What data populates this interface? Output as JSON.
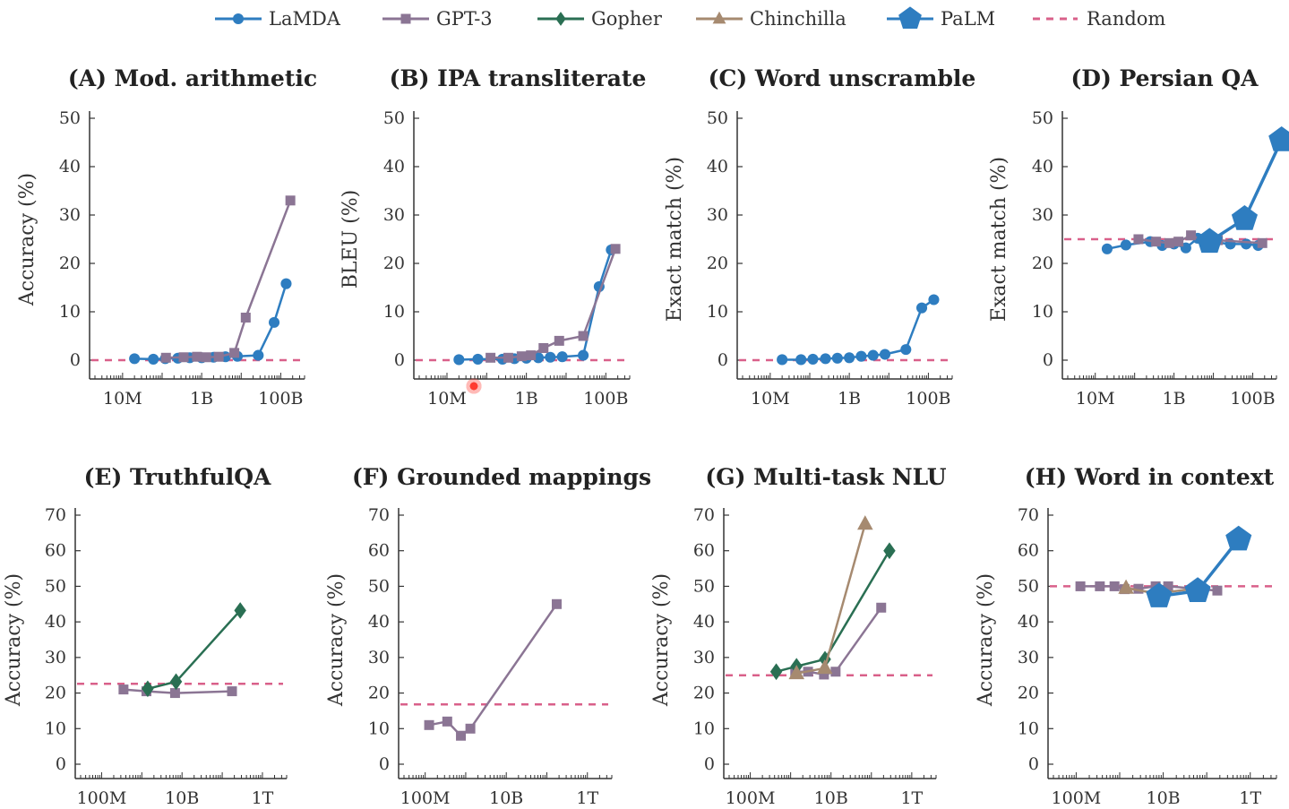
{
  "colors": {
    "LaMDA": "#2e7dc0",
    "GPT-3": "#8b7594",
    "Gopher": "#2a6f53",
    "Chinchilla": "#a68a70",
    "PaLM": "#2e7dc0",
    "Random": "#d9608a"
  },
  "legend": [
    {
      "name": "LaMDA",
      "marker": "circle",
      "dash": false
    },
    {
      "name": "GPT-3",
      "marker": "square",
      "dash": false
    },
    {
      "name": "Gopher",
      "marker": "diamond",
      "dash": false
    },
    {
      "name": "Chinchilla",
      "marker": "triangle",
      "dash": false
    },
    {
      "name": "PaLM",
      "marker": "pentagon",
      "dash": false
    },
    {
      "name": "Random",
      "marker": "none",
      "dash": true
    }
  ],
  "chart_data": [
    {
      "type": "line",
      "title": "(A) Mod. arithmetic",
      "xlabel": "",
      "ylabel": "Accuracy (%)",
      "xscale": "log",
      "xlim": [
        2000000.0,
        400000000000.0
      ],
      "ylim": [
        -4,
        52
      ],
      "yticks": [
        0,
        10,
        20,
        30,
        40,
        50
      ],
      "xticks": [
        {
          "value": 10000000.0,
          "label": "10M"
        },
        {
          "value": 1000000000.0,
          "label": "1B"
        },
        {
          "value": 100000000000.0,
          "label": "100B"
        }
      ],
      "random": 0,
      "series": [
        {
          "name": "LaMDA",
          "x": [
            20000000.0,
            60000000.0,
            120000000.0,
            250000000.0,
            500000000.0,
            1000000000.0,
            2000000000.0,
            4000000000.0,
            8000000000.0,
            27000000000.0,
            68000000000.0,
            137000000000.0
          ],
          "y": [
            0.3,
            0.2,
            0.3,
            0.4,
            0.5,
            0.5,
            0.6,
            0.7,
            0.8,
            1,
            7.8,
            15.8
          ]
        },
        {
          "name": "GPT-3",
          "x": [
            125000000.0,
            350000000.0,
            760000000.0,
            1300000000.0,
            2700000000.0,
            6700000000.0,
            13000000000.0,
            175000000000.0
          ],
          "y": [
            0.5,
            0.6,
            0.7,
            0.6,
            0.7,
            1.5,
            8.8,
            33
          ]
        }
      ]
    },
    {
      "type": "line",
      "title": "(B) IPA transliterate",
      "xlabel": "",
      "ylabel": "BLEU (%)",
      "xscale": "log",
      "xlim": [
        2000000.0,
        400000000000.0
      ],
      "ylim": [
        -4,
        52
      ],
      "yticks": [
        0,
        10,
        20,
        30,
        40,
        50
      ],
      "xticks": [
        {
          "value": 10000000.0,
          "label": "10M"
        },
        {
          "value": 1000000000.0,
          "label": "1B"
        },
        {
          "value": 100000000000.0,
          "label": "100B"
        }
      ],
      "random": 0,
      "series": [
        {
          "name": "LaMDA",
          "x": [
            20000000.0,
            60000000.0,
            250000000.0,
            500000000.0,
            1000000000.0,
            2000000000.0,
            4000000000.0,
            8000000000.0,
            27000000000.0,
            68000000000.0,
            137000000000.0
          ],
          "y": [
            0.1,
            0.2,
            0.2,
            0.3,
            0.4,
            0.5,
            0.6,
            0.7,
            1,
            15.2,
            22.8
          ]
        },
        {
          "name": "GPT-3",
          "x": [
            125000000.0,
            350000000.0,
            760000000.0,
            1300000000.0,
            2700000000.0,
            6700000000.0,
            27000000000.0,
            175000000000.0
          ],
          "y": [
            0.5,
            0.5,
            0.8,
            1,
            2.5,
            4,
            5,
            23
          ]
        }
      ]
    },
    {
      "type": "line",
      "title": "(C) Word unscramble",
      "xlabel": "",
      "ylabel": "Exact match (%)",
      "xscale": "log",
      "xlim": [
        2000000.0,
        400000000000.0
      ],
      "ylim": [
        -4,
        52
      ],
      "yticks": [
        0,
        10,
        20,
        30,
        40,
        50
      ],
      "xticks": [
        {
          "value": 10000000.0,
          "label": "10M"
        },
        {
          "value": 1000000000.0,
          "label": "1B"
        },
        {
          "value": 100000000000.0,
          "label": "100B"
        }
      ],
      "random": 0,
      "series": [
        {
          "name": "LaMDA",
          "x": [
            20000000.0,
            60000000.0,
            120000000.0,
            250000000.0,
            500000000.0,
            1000000000.0,
            2000000000.0,
            4000000000.0,
            8000000000.0,
            27000000000.0,
            68000000000.0,
            137000000000.0
          ],
          "y": [
            0.1,
            0.1,
            0.2,
            0.3,
            0.4,
            0.5,
            0.8,
            1,
            1.2,
            2.2,
            10.8,
            12.5
          ]
        }
      ]
    },
    {
      "type": "line",
      "title": "(D) Persian QA",
      "xlabel": "",
      "ylabel": "Exact match (%)",
      "xscale": "log",
      "xlim": [
        2000000.0,
        400000000000.0
      ],
      "ylim": [
        -4,
        52
      ],
      "yticks": [
        0,
        10,
        20,
        30,
        40,
        50
      ],
      "xticks": [
        {
          "value": 10000000.0,
          "label": "10M"
        },
        {
          "value": 1000000000.0,
          "label": "1B"
        },
        {
          "value": 100000000000.0,
          "label": "100B"
        }
      ],
      "random": 25,
      "series": [
        {
          "name": "LaMDA",
          "x": [
            20000000.0,
            60000000.0,
            250000000.0,
            500000000.0,
            1000000000.0,
            2000000000.0,
            4000000000.0,
            8000000000.0,
            27000000000.0,
            68000000000.0,
            137000000000.0
          ],
          "y": [
            23,
            23.8,
            24.5,
            23.7,
            24,
            23.2,
            25.2,
            24.5,
            24,
            24,
            23.7
          ]
        },
        {
          "name": "GPT-3",
          "x": [
            125000000.0,
            350000000.0,
            760000000.0,
            1300000000.0,
            2700000000.0,
            6700000000.0,
            13000000000.0,
            175000000000.0
          ],
          "y": [
            25,
            24.5,
            24.2,
            24.5,
            25.8,
            24.5,
            24.8,
            24.2
          ]
        },
        {
          "name": "PaLM",
          "x": [
            8000000000.0,
            62000000000.0,
            540000000000.0
          ],
          "y": [
            24.5,
            29.2,
            45.5
          ]
        }
      ]
    },
    {
      "type": "line",
      "title": "(E) TruthfulQA",
      "xlabel": "",
      "ylabel": "Accuracy (%)",
      "xscale": "log",
      "xlim": [
        30000000.0,
        4000000000000.0
      ],
      "ylim": [
        -4,
        72
      ],
      "yticks": [
        0,
        10,
        20,
        30,
        40,
        50,
        60,
        70
      ],
      "xticks": [
        {
          "value": 100000000.0,
          "label": "100M"
        },
        {
          "value": 10000000000.0,
          "label": "10B"
        },
        {
          "value": 1000000000000.0,
          "label": "1T"
        }
      ],
      "random": 22.6,
      "series": [
        {
          "name": "GPT-3",
          "x": [
            350000000.0,
            1300000000.0,
            6700000000.0,
            175000000000.0
          ],
          "y": [
            21,
            20.5,
            20,
            20.5
          ]
        },
        {
          "name": "Gopher",
          "x": [
            1400000000.0,
            7100000000.0,
            280000000000.0
          ],
          "y": [
            21.2,
            23.2,
            43.2
          ]
        }
      ]
    },
    {
      "type": "line",
      "title": "(F) Grounded mappings",
      "xlabel": "",
      "ylabel": "Accuracy (%)",
      "xscale": "log",
      "xlim": [
        30000000.0,
        4000000000000.0
      ],
      "ylim": [
        -4,
        72
      ],
      "yticks": [
        0,
        10,
        20,
        30,
        40,
        50,
        60,
        70
      ],
      "xticks": [
        {
          "value": 100000000.0,
          "label": "100M"
        },
        {
          "value": 10000000000.0,
          "label": "10B"
        },
        {
          "value": 1000000000000.0,
          "label": "1T"
        }
      ],
      "random": 16.8,
      "series": [
        {
          "name": "GPT-3",
          "x": [
            125000000.0,
            350000000.0,
            760000000.0,
            1300000000.0,
            175000000000.0
          ],
          "y": [
            11,
            12,
            8,
            10,
            45
          ]
        }
      ]
    },
    {
      "type": "line",
      "title": "(G) Multi-task NLU",
      "xlabel": "",
      "ylabel": "Accuracy (%)",
      "xscale": "log",
      "xlim": [
        30000000.0,
        4000000000000.0
      ],
      "ylim": [
        -4,
        72
      ],
      "yticks": [
        0,
        10,
        20,
        30,
        40,
        50,
        60,
        70
      ],
      "xticks": [
        {
          "value": 100000000.0,
          "label": "100M"
        },
        {
          "value": 10000000000.0,
          "label": "10B"
        },
        {
          "value": 1000000000000.0,
          "label": "1T"
        }
      ],
      "random": 25,
      "series": [
        {
          "name": "GPT-3",
          "x": [
            1300000000.0,
            2700000000.0,
            6700000000.0,
            13000000000.0,
            175000000000.0
          ],
          "y": [
            26,
            26,
            25.2,
            26,
            44
          ]
        },
        {
          "name": "Gopher",
          "x": [
            440000000.0,
            1400000000.0,
            7100000000.0,
            280000000000.0
          ],
          "y": [
            26,
            27.5,
            29.5,
            60
          ]
        },
        {
          "name": "Chinchilla",
          "x": [
            1400000000.0,
            7000000000.0,
            70000000000.0
          ],
          "y": [
            25.5,
            27,
            67.5
          ]
        }
      ]
    },
    {
      "type": "line",
      "title": "(H) Word in context",
      "xlabel": "",
      "ylabel": "Accuracy (%)",
      "xscale": "log",
      "xlim": [
        30000000.0,
        4000000000000.0
      ],
      "ylim": [
        -4,
        72
      ],
      "yticks": [
        0,
        10,
        20,
        30,
        40,
        50,
        60,
        70
      ],
      "xticks": [
        {
          "value": 100000000.0,
          "label": "100M"
        },
        {
          "value": 10000000000.0,
          "label": "10B"
        },
        {
          "value": 1000000000000.0,
          "label": "1T"
        }
      ],
      "random": 50,
      "series": [
        {
          "name": "GPT-3",
          "x": [
            125000000.0,
            350000000.0,
            760000000.0,
            1300000000.0,
            2700000000.0,
            6700000000.0,
            13000000000.0,
            175000000000.0
          ],
          "y": [
            50,
            50,
            50,
            49.2,
            49.3,
            50,
            50,
            48.8
          ]
        },
        {
          "name": "Chinchilla",
          "x": [
            1400000000.0,
            7000000000.0,
            70000000000.0
          ],
          "y": [
            49.5,
            48,
            49.5
          ]
        },
        {
          "name": "PaLM",
          "x": [
            8000000000.0,
            62000000000.0,
            540000000000.0
          ],
          "y": [
            47.2,
            48.7,
            63.2
          ]
        }
      ]
    }
  ]
}
